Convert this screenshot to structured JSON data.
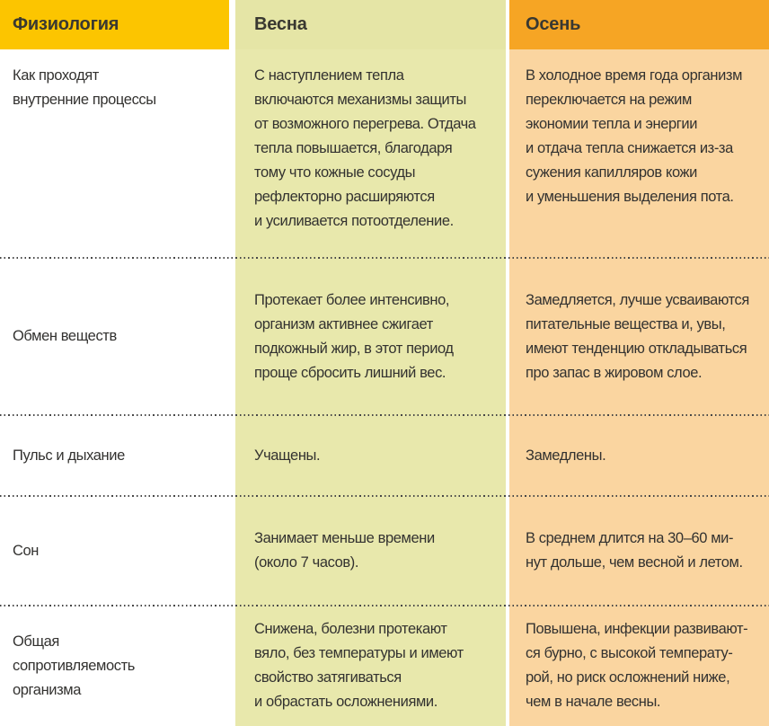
{
  "table": {
    "headers": {
      "physiology": "Физиология",
      "spring": "Весна",
      "autumn": "Осень"
    },
    "rows": [
      {
        "label": "Как проходят\nвнутренние процессы",
        "spring": "С наступлением тепла\nвключаются механизмы защиты\nот возможного перегрева. Отдача\nтепла повышается, благодаря\nтому что кожные сосуды\nрефлекторно расширяются\nи усиливается потоотделение.",
        "autumn": "В холодное время года организм\nпереключается на режим\nэкономии тепла и энергии\nи отдача тепла снижается из-за\nсужения капилляров кожи\nи уменьшения выделения пота."
      },
      {
        "label": "Обмен веществ",
        "spring": "Протекает более интенсивно,\nорганизм активнее сжигает\nподкожный жир, в этот период\nпроще сбросить лишний вес.",
        "autumn": "Замедляется, лучше усваиваются\nпитательные вещества и, увы,\nимеют тенденцию откладываться\nпро запас в жировом слое."
      },
      {
        "label": "Пульс и дыхание",
        "spring": "Учащены.",
        "autumn": "Замедлены."
      },
      {
        "label": "Сон",
        "spring": "Занимает меньше времени\n(около 7 часов).",
        "autumn": "В среднем длится на 30–60 ми-\nнут дольше, чем весной и летом."
      },
      {
        "label": "Общая\nсопротивляемость\nорганизма",
        "spring": "Снижена, болезни протекают\nвяло, без температуры и имеют\nсвойство затягиваться\nи обрастать осложнениями.",
        "autumn": "Повышена, инфекции развивают-\nся бурно, с высокой температу-\nрой, но риск осложнений ниже,\nчем в начале весны."
      }
    ]
  },
  "colors": {
    "physiology_header_bg": "#FCC500",
    "spring_bg": "#E8E8AC",
    "autumn_header_bg": "#F6A524",
    "autumn_body_bg": "#FAD5A0",
    "text": "#333230",
    "separator_dots": "#474747"
  }
}
